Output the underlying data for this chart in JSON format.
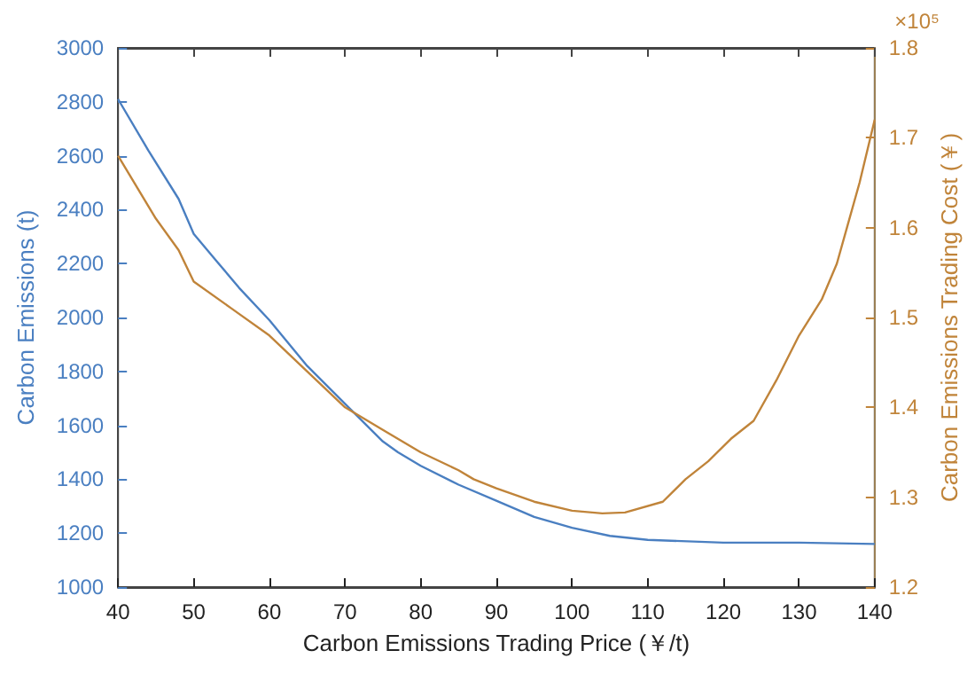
{
  "chart_data": {
    "type": "line",
    "xlabel": "Carbon Emissions Trading Price (￥/t)",
    "ylabel": "Carbon Emissions (t)",
    "y2label": "Carbon Emissions Trading Cost (￥)",
    "annotations": [
      "×10⁵"
    ],
    "xlim": [
      40,
      140
    ],
    "xticks": [
      40,
      50,
      60,
      70,
      80,
      90,
      100,
      110,
      120,
      130,
      140
    ],
    "ylim": [
      1000,
      3000
    ],
    "yticks": [
      1000,
      1200,
      1400,
      1600,
      1800,
      2000,
      2200,
      2400,
      2600,
      2800,
      3000
    ],
    "y2lim": [
      1.2,
      1.8
    ],
    "y2ticks": [
      1.2,
      1.3,
      1.4,
      1.5,
      1.6,
      1.7,
      1.8
    ],
    "grid": false,
    "marker": "none",
    "line_style": "solid",
    "series": [
      {
        "color": "#4a7fc1",
        "x": [
          40,
          44,
          48,
          50,
          53,
          56,
          60,
          65,
          70,
          75,
          77,
          80,
          85,
          90,
          95,
          100,
          105,
          110,
          120,
          130,
          140
        ],
        "values": [
          2810,
          2620,
          2440,
          2310,
          2210,
          2110,
          1990,
          1820,
          1680,
          1540,
          1500,
          1450,
          1380,
          1320,
          1260,
          1220,
          1190,
          1175,
          1165,
          1165,
          1160
        ]
      },
      {
        "color": "#c0843a",
        "axis": "y2",
        "x": [
          40,
          45,
          48,
          50,
          55,
          60,
          65,
          70,
          75,
          80,
          85,
          87,
          90,
          95,
          100,
          104,
          107,
          112,
          115,
          118,
          121,
          124,
          127,
          130,
          133,
          135,
          138,
          140
        ],
        "values": [
          1.68,
          1.61,
          1.575,
          1.54,
          1.51,
          1.48,
          1.44,
          1.4,
          1.375,
          1.35,
          1.33,
          1.32,
          1.31,
          1.295,
          1.285,
          1.282,
          1.283,
          1.295,
          1.32,
          1.34,
          1.365,
          1.385,
          1.43,
          1.48,
          1.52,
          1.56,
          1.65,
          1.72
        ]
      }
    ]
  }
}
